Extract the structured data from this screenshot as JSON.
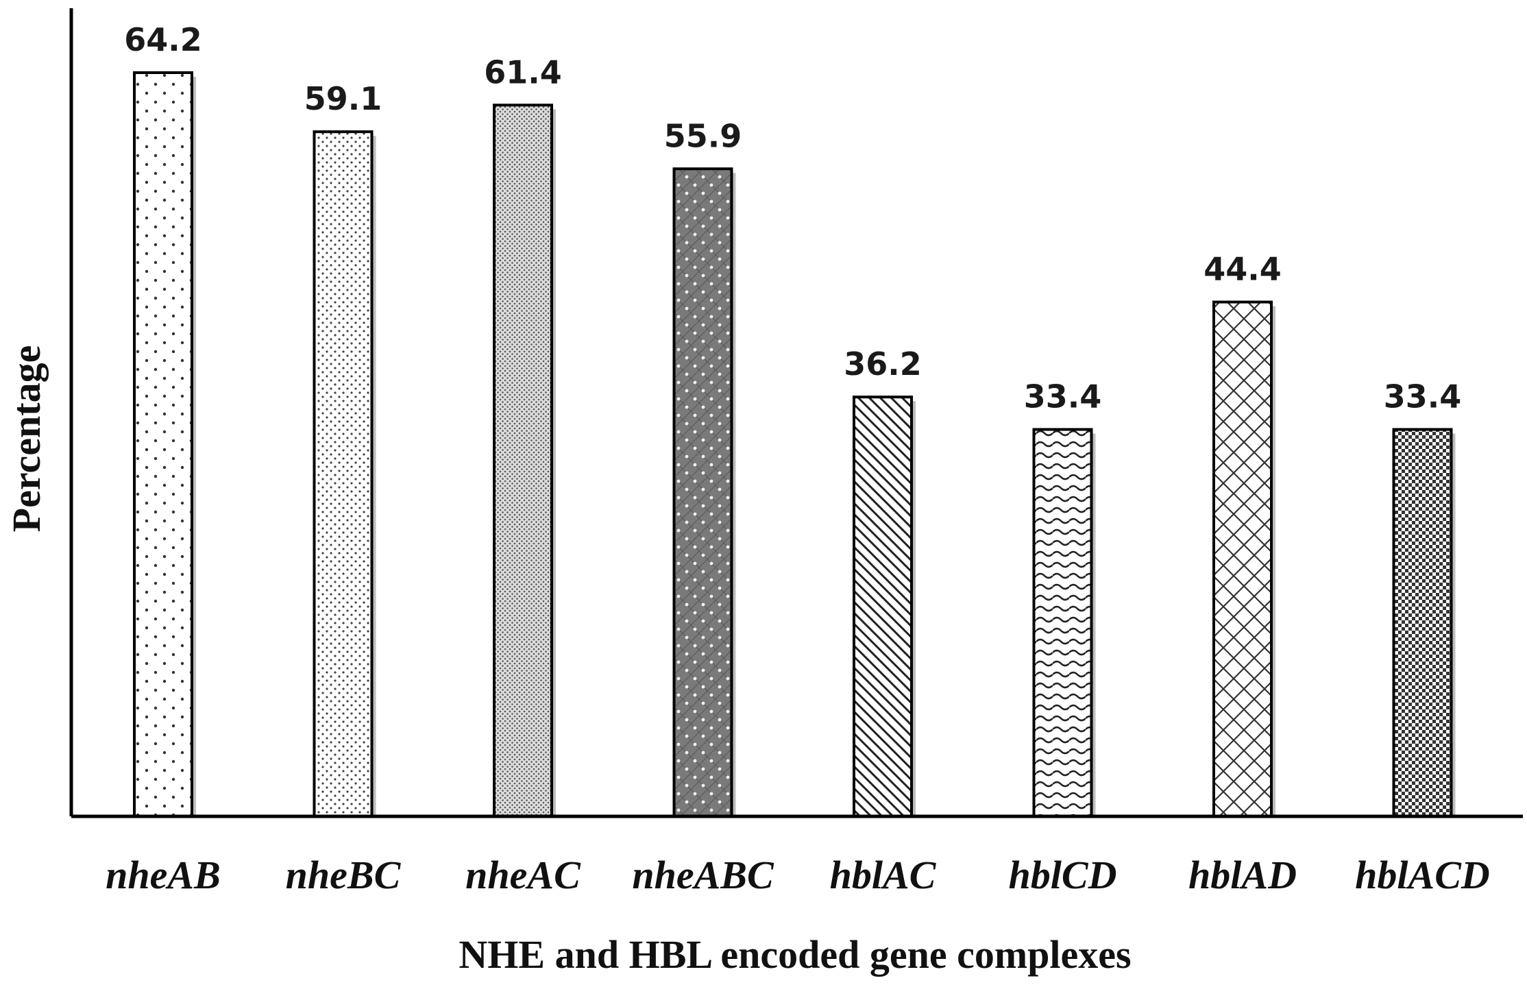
{
  "chart_data": {
    "type": "bar",
    "title": "",
    "xlabel": "NHE and HBL encoded gene complexes",
    "ylabel": "Percentage",
    "ylim": [
      0,
      66
    ],
    "grid": false,
    "legend": "none",
    "categories": [
      "nheAB",
      "nheBC",
      "nheAC",
      "nheABC",
      "hblAC",
      "hblCD",
      "hblAD",
      "hblACD"
    ],
    "values": [
      64.2,
      59.1,
      61.4,
      55.9,
      36.2,
      33.4,
      44.4,
      33.4
    ],
    "value_labels": [
      "64.2",
      "59.1",
      "61.4",
      "55.9",
      "36.2",
      "33.4",
      "44.4",
      "33.4"
    ],
    "patterns": [
      "sparse-dots",
      "fine-dots",
      "dense-dots",
      "dark-dots",
      "diagonal-lines",
      "wavy-lines",
      "crosshatch",
      "checker"
    ],
    "colors": {
      "outline": "#000000",
      "fill": "#ffffff",
      "dark_fill": "#6e6e6e"
    }
  }
}
